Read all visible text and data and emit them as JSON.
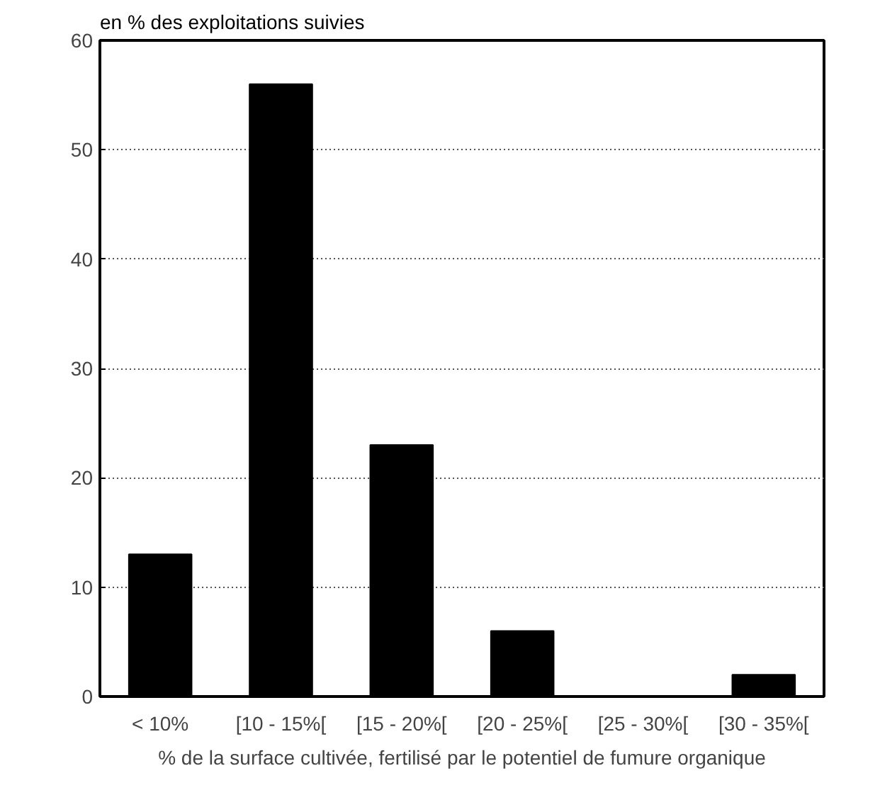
{
  "chart_data": {
    "type": "bar",
    "ylabel": "en % des exploitations suivies",
    "xlabel": "% de la surface cultivée, fertilisé par le potentiel de fumure organique",
    "categories": [
      "< 10%",
      "[10 - 15%[",
      "[15 - 20%[",
      "[20 - 25%[",
      "[25 - 30%[",
      "[30 - 35%["
    ],
    "values": [
      13,
      56,
      23,
      6,
      0,
      2
    ],
    "color": "#000000",
    "ylim": [
      0,
      60
    ],
    "yticks": [
      0,
      10,
      20,
      30,
      40,
      50,
      60
    ],
    "grid": "y"
  }
}
